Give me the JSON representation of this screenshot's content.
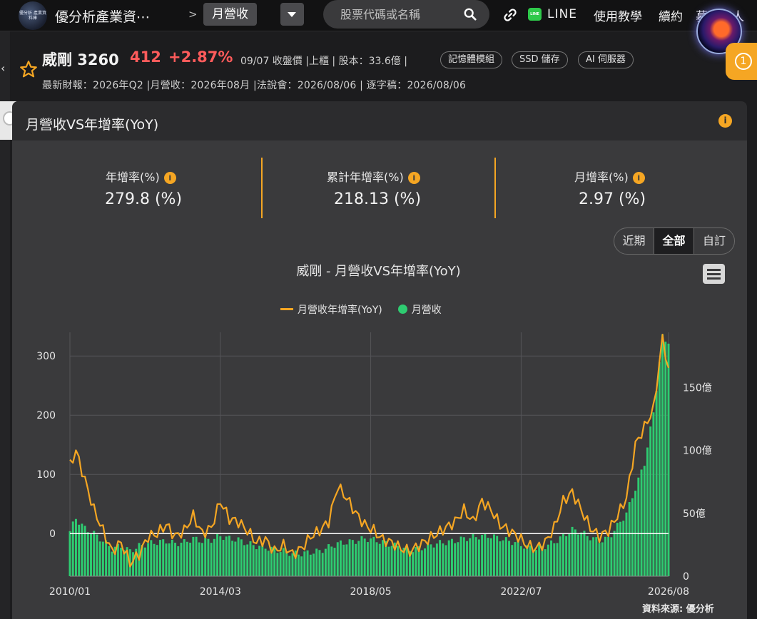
{
  "header": {
    "site_name": "優分析產業資⋯",
    "logo_text": "優分析 產業資料庫",
    "crumb_sep": ">",
    "current_page": "月營收",
    "search_placeholder": "股票代碼或名稱",
    "nav": {
      "line": "LINE",
      "tutorial": "使用教學",
      "renew": "續約",
      "recruit": "募集達人"
    },
    "notification_count": "1"
  },
  "stock": {
    "name": "威剛 3260",
    "price": "412",
    "change": "+2.87%",
    "meta": "09/07 收盤價 |上櫃 | 股本：33.6億 |",
    "tags": [
      "記憶體模組",
      "SSD 儲存",
      "AI 伺服器"
    ],
    "info_line": "最新財報：2026年Q2 |月營收：2026年08月 |法說會：2026/08/06 | 逐字稿：2026/08/06"
  },
  "panel": {
    "title": "月營收VS年增率(YoY)",
    "info_glyph": "i",
    "stats": [
      {
        "label": "年增率(%)",
        "value": "279.8 (%)"
      },
      {
        "label": "累計年增率(%)",
        "value": "218.13 (%)"
      },
      {
        "label": "月增率(%)",
        "value": "2.97 (%)"
      }
    ],
    "ranges": [
      "近期",
      "全部",
      "自訂"
    ],
    "active_range": "全部",
    "source": "資料來源: 優分析"
  },
  "colors": {
    "accent": "#f5a623",
    "up": "#ff5b5b",
    "bar": "#2ecc71",
    "line": "#f5a623"
  },
  "chart_data": {
    "type": "bar",
    "title": "威剛 - 月營收VS年增率(YoY)",
    "legend_placement": "top",
    "grid": true,
    "x_ticks": [
      "2010/01",
      "2014/03",
      "2018/05",
      "2022/07",
      "2026/08"
    ],
    "y_left": {
      "ticks": [
        0,
        100,
        200,
        300
      ],
      "range": [
        -72,
        340
      ]
    },
    "y_right": {
      "ticks": [
        "0",
        "50億",
        "100億",
        "150億"
      ],
      "tick_values": [
        0,
        50,
        100,
        150
      ],
      "range": [
        0,
        194
      ]
    },
    "series": [
      {
        "name": "月營收年增率(YoY)",
        "type": "line",
        "axis": "left",
        "points": [
          [
            "2010/01",
            115
          ],
          [
            "2010/03",
            140
          ],
          [
            "2010/06",
            90
          ],
          [
            "2010/09",
            40
          ],
          [
            "2010/12",
            5
          ],
          [
            "2011/03",
            -30
          ],
          [
            "2011/06",
            -15
          ],
          [
            "2011/09",
            -50
          ],
          [
            "2011/12",
            -35
          ],
          [
            "2012/03",
            -5
          ],
          [
            "2012/06",
            0
          ],
          [
            "2012/09",
            15
          ],
          [
            "2012/12",
            -5
          ],
          [
            "2013/03",
            5
          ],
          [
            "2013/06",
            30
          ],
          [
            "2013/09",
            0
          ],
          [
            "2013/12",
            10
          ],
          [
            "2014/03",
            55
          ],
          [
            "2014/06",
            25
          ],
          [
            "2014/09",
            20
          ],
          [
            "2014/12",
            5
          ],
          [
            "2015/03",
            -15
          ],
          [
            "2015/06",
            -10
          ],
          [
            "2015/09",
            -30
          ],
          [
            "2015/12",
            -20
          ],
          [
            "2016/03",
            -35
          ],
          [
            "2016/06",
            -25
          ],
          [
            "2016/09",
            -5
          ],
          [
            "2016/12",
            5
          ],
          [
            "2017/03",
            20
          ],
          [
            "2017/06",
            80
          ],
          [
            "2017/09",
            60
          ],
          [
            "2017/12",
            35
          ],
          [
            "2018/03",
            15
          ],
          [
            "2018/06",
            5
          ],
          [
            "2018/09",
            -10
          ],
          [
            "2018/12",
            -15
          ],
          [
            "2019/03",
            -25
          ],
          [
            "2019/06",
            -30
          ],
          [
            "2019/09",
            -20
          ],
          [
            "2019/12",
            -10
          ],
          [
            "2020/03",
            0
          ],
          [
            "2020/06",
            10
          ],
          [
            "2020/09",
            20
          ],
          [
            "2020/12",
            40
          ],
          [
            "2021/03",
            20
          ],
          [
            "2021/06",
            55
          ],
          [
            "2021/09",
            40
          ],
          [
            "2021/12",
            15
          ],
          [
            "2022/03",
            5
          ],
          [
            "2022/06",
            -5
          ],
          [
            "2022/09",
            -20
          ],
          [
            "2022/12",
            -25
          ],
          [
            "2023/03",
            -15
          ],
          [
            "2023/06",
            10
          ],
          [
            "2023/09",
            55
          ],
          [
            "2023/12",
            70
          ],
          [
            "2024/03",
            40
          ],
          [
            "2024/06",
            10
          ],
          [
            "2024/09",
            -5
          ],
          [
            "2024/12",
            5
          ],
          [
            "2025/03",
            30
          ],
          [
            "2025/06",
            60
          ],
          [
            "2025/09",
            150
          ],
          [
            "2025/12",
            180
          ],
          [
            "2026/03",
            210
          ],
          [
            "2026/06",
            330
          ],
          [
            "2026/08",
            280
          ]
        ]
      },
      {
        "name": "月營收",
        "type": "bar",
        "axis": "right",
        "unit": "億",
        "points": [
          [
            "2010/01",
            36
          ],
          [
            "2010/03",
            46
          ],
          [
            "2010/06",
            38
          ],
          [
            "2010/09",
            34
          ],
          [
            "2010/12",
            28
          ],
          [
            "2011/03",
            22
          ],
          [
            "2011/06",
            24
          ],
          [
            "2011/09",
            20
          ],
          [
            "2011/12",
            24
          ],
          [
            "2012/03",
            26
          ],
          [
            "2012/06",
            27
          ],
          [
            "2012/09",
            28
          ],
          [
            "2012/12",
            26
          ],
          [
            "2013/03",
            27
          ],
          [
            "2013/06",
            30
          ],
          [
            "2013/09",
            28
          ],
          [
            "2013/12",
            29
          ],
          [
            "2014/03",
            32
          ],
          [
            "2014/06",
            30
          ],
          [
            "2014/09",
            29
          ],
          [
            "2014/12",
            26
          ],
          [
            "2015/03",
            24
          ],
          [
            "2015/06",
            23
          ],
          [
            "2015/09",
            21
          ],
          [
            "2015/12",
            20
          ],
          [
            "2016/03",
            18
          ],
          [
            "2016/06",
            18
          ],
          [
            "2016/09",
            19
          ],
          [
            "2016/12",
            20
          ],
          [
            "2017/03",
            23
          ],
          [
            "2017/06",
            26
          ],
          [
            "2017/09",
            27
          ],
          [
            "2017/12",
            28
          ],
          [
            "2018/03",
            30
          ],
          [
            "2018/06",
            29
          ],
          [
            "2018/09",
            27
          ],
          [
            "2018/12",
            25
          ],
          [
            "2019/03",
            23
          ],
          [
            "2019/06",
            21
          ],
          [
            "2019/09",
            22
          ],
          [
            "2019/12",
            24
          ],
          [
            "2020/03",
            26
          ],
          [
            "2020/06",
            27
          ],
          [
            "2020/09",
            28
          ],
          [
            "2020/12",
            30
          ],
          [
            "2021/03",
            31
          ],
          [
            "2021/06",
            32
          ],
          [
            "2021/09",
            32
          ],
          [
            "2021/12",
            30
          ],
          [
            "2022/03",
            28
          ],
          [
            "2022/06",
            26
          ],
          [
            "2022/09",
            23
          ],
          [
            "2022/12",
            22
          ],
          [
            "2023/03",
            24
          ],
          [
            "2023/06",
            27
          ],
          [
            "2023/09",
            32
          ],
          [
            "2023/12",
            37
          ],
          [
            "2024/03",
            35
          ],
          [
            "2024/06",
            31
          ],
          [
            "2024/09",
            28
          ],
          [
            "2024/12",
            30
          ],
          [
            "2025/03",
            40
          ],
          [
            "2025/06",
            50
          ],
          [
            "2025/09",
            70
          ],
          [
            "2025/12",
            90
          ],
          [
            "2026/03",
            130
          ],
          [
            "2026/06",
            190
          ],
          [
            "2026/08",
            185
          ]
        ]
      }
    ]
  }
}
